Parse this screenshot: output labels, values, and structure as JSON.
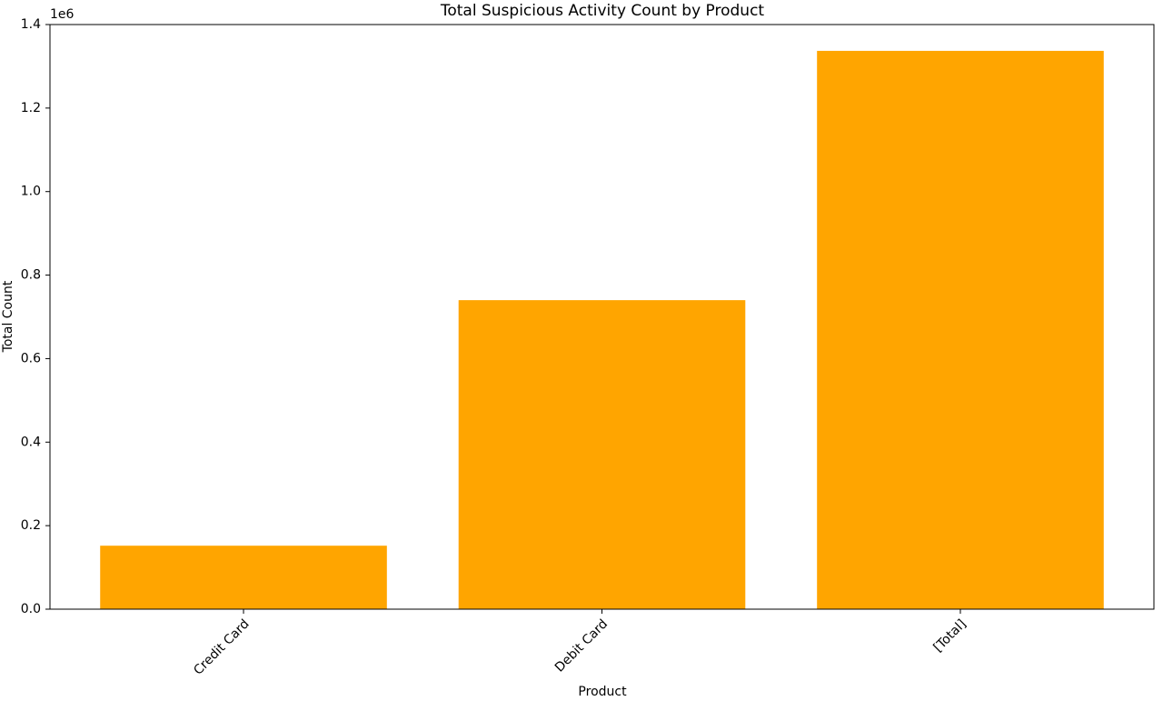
{
  "chart_data": {
    "type": "bar",
    "title": "Total Suspicious Activity Count by Product",
    "x_label": "Product",
    "y_label": "Total Count",
    "y_offset_label": "1e6",
    "categories": [
      "Credit Card",
      "Debit Card",
      "[Total]"
    ],
    "values": [
      0.152,
      0.74,
      1.337
    ],
    "color": "#ffa500",
    "ylim": [
      0,
      1.4
    ],
    "yticks": [
      {
        "value": 0,
        "label": "0.0"
      },
      0.2,
      0.4,
      0.6,
      0.8,
      {
        "value": 1,
        "label": "1.0"
      },
      1.2,
      1.4
    ],
    "grid": false
  }
}
